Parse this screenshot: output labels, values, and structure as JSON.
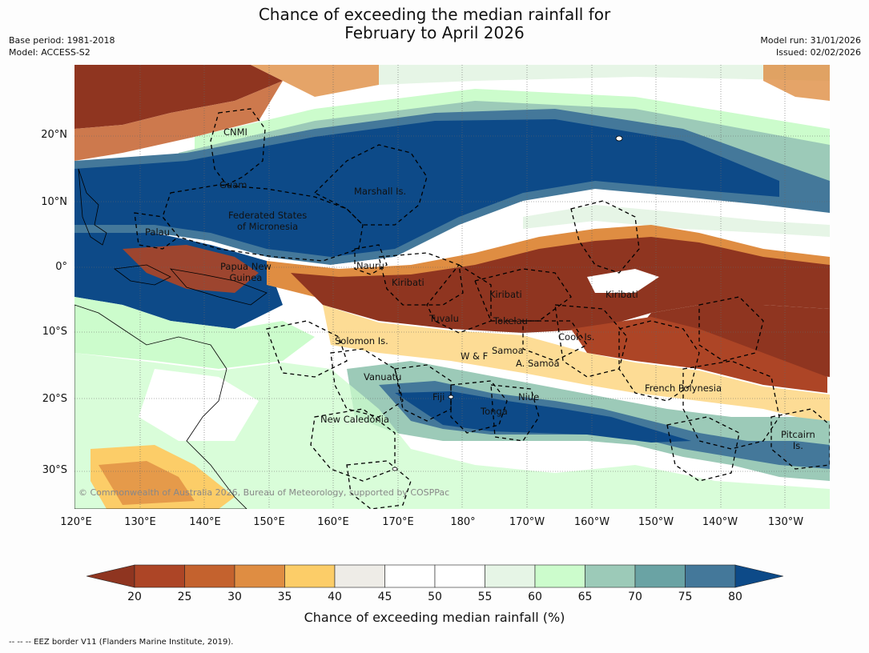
{
  "title": {
    "line1": "Chance of exceeding the median rainfall for",
    "line2": "February to April 2026"
  },
  "meta": {
    "base_period": "Base period: 1981-2018",
    "model": "Model: ACCESS-S2",
    "model_run": "Model run: 31/01/2026",
    "issued": "Issued: 02/02/2026"
  },
  "axes": {
    "lat_labels": [
      "20°N",
      "10°N",
      "0°",
      "10°S",
      "20°S",
      "30°S"
    ],
    "lon_labels": [
      "120°E",
      "130°E",
      "140°E",
      "150°E",
      "160°E",
      "170°E",
      "180°",
      "170°W",
      "160°W",
      "150°W",
      "140°W",
      "130°W"
    ]
  },
  "regions": [
    {
      "text": "CNMI"
    },
    {
      "text": "Guam"
    },
    {
      "text": "Marshall Is."
    },
    {
      "text": "Federated States\nof Micronesia"
    },
    {
      "text": "Palau"
    },
    {
      "text": "Papua New\nGuinea"
    },
    {
      "text": "Nauru"
    },
    {
      "text": "Kiribati"
    },
    {
      "text": "Kiribati"
    },
    {
      "text": "Kiribati"
    },
    {
      "text": "Tuvalu"
    },
    {
      "text": "Tokelau"
    },
    {
      "text": "Cook Is."
    },
    {
      "text": "Solomon Is."
    },
    {
      "text": "W & F"
    },
    {
      "text": "Samoa"
    },
    {
      "text": "A. Samoa"
    },
    {
      "text": "Vanuatu"
    },
    {
      "text": "Fiji"
    },
    {
      "text": "Niue"
    },
    {
      "text": "Tonga"
    },
    {
      "text": "New Caledonia"
    },
    {
      "text": "French Polynesia"
    },
    {
      "text": "Pitcairn\nIs."
    }
  ],
  "copyright": "© Commonwealth of Australia 2026, Bureau of Meteorology, supported by COSPPac",
  "colorbar": {
    "labels": [
      "20",
      "25",
      "30",
      "35",
      "40",
      "45",
      "50",
      "55",
      "60",
      "65",
      "70",
      "75",
      "80"
    ],
    "colors": [
      "#8f3520",
      "#ad4526",
      "#c4622e",
      "#df8d42",
      "#fccd68",
      "#eeece7",
      "#ffffff",
      "#ffffff",
      "#e6f5e6",
      "#ccfccc",
      "#9ccab8",
      "#6aa3a4",
      "#44789a",
      "#0d4a88"
    ],
    "title": "Chance of exceeding median rainfall (%)"
  },
  "footer": "--  --  -- EEZ border V11 (Flanders Marine Institute, 2019).",
  "colors": {
    "wet_dark": "#0d4a88",
    "dry_dark": "#8f3520",
    "neutral": "#ffffff"
  }
}
